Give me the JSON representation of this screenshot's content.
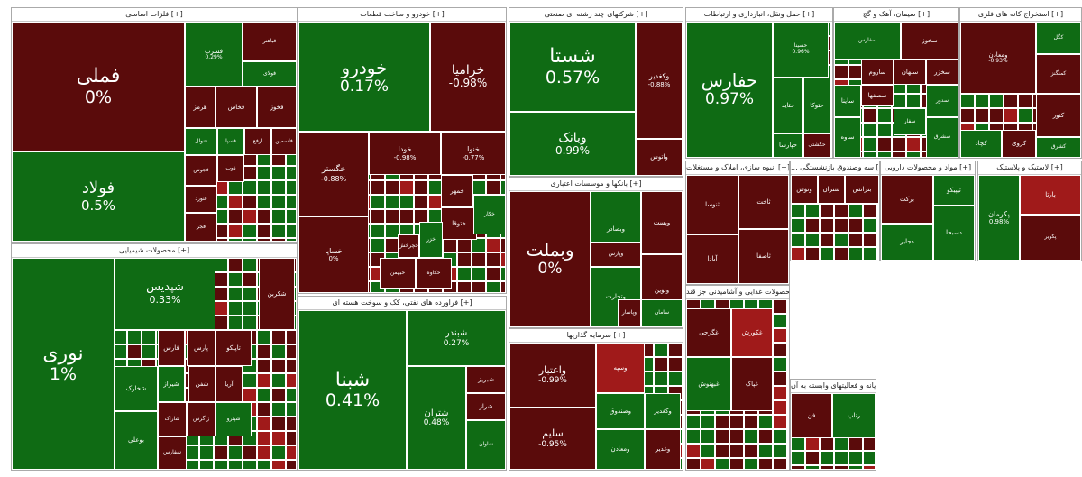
{
  "colors": {
    "green": "#0f6b14",
    "red": "#5a0b0b",
    "red_bright": "#a01a1a",
    "red_mid": "#7d1010",
    "border": "#ffffff",
    "header_bg": "#ffffff"
  },
  "sectors": [
    {
      "id": "s1",
      "title": "فلزات اساسی [+]",
      "tiles": [
        {
          "name": "فملی",
          "pct": "0%",
          "c": "red"
        },
        {
          "name": "فولاد",
          "pct": "0.5%",
          "c": "green"
        },
        {
          "name": "فسرب",
          "pct": "0.29%",
          "c": "green"
        },
        {
          "name": "فباهنر",
          "pct": "",
          "c": "red"
        },
        {
          "name": "فولای",
          "pct": "",
          "c": "green"
        },
        {
          "name": "هرمز",
          "pct": "",
          "c": "red"
        },
        {
          "name": "فخاس",
          "pct": "",
          "c": "red"
        },
        {
          "name": "فخوز",
          "pct": "",
          "c": "red"
        },
        {
          "name": "فنوال",
          "pct": "",
          "c": "green"
        },
        {
          "name": "فسپا",
          "pct": "",
          "c": "green"
        },
        {
          "name": "ارفع",
          "pct": "",
          "c": "red"
        },
        {
          "name": "فاسمین",
          "pct": "",
          "c": "red"
        },
        {
          "name": "فجوش",
          "pct": "",
          "c": "red"
        },
        {
          "name": "ذوب",
          "pct": "",
          "c": "red"
        },
        {
          "name": "فنورد",
          "pct": "",
          "c": "red"
        },
        {
          "name": "فجر",
          "pct": "",
          "c": "red"
        }
      ]
    },
    {
      "id": "s2",
      "title": "خودرو و ساخت قطعات [+]",
      "tiles": [
        {
          "name": "خودرو",
          "pct": "0.17%",
          "c": "green"
        },
        {
          "name": "خرامیا",
          "pct": "-0.98%",
          "c": "red"
        },
        {
          "name": "خگستر",
          "pct": "-0.88%",
          "c": "red"
        },
        {
          "name": "خودا",
          "pct": "-0.98%",
          "c": "red"
        },
        {
          "name": "خنوا",
          "pct": "-0.77%",
          "c": "red"
        },
        {
          "name": "خساپا",
          "pct": "0%",
          "c": "red"
        },
        {
          "name": "خمهر",
          "pct": "",
          "c": "red"
        },
        {
          "name": "ختوقا",
          "pct": "",
          "c": "red"
        },
        {
          "name": "خکار",
          "pct": "",
          "c": "green"
        },
        {
          "name": "خزر",
          "pct": "",
          "c": "green"
        },
        {
          "name": "خچرخش",
          "pct": "",
          "c": "red"
        },
        {
          "name": "خبهمن",
          "pct": "",
          "c": "red"
        },
        {
          "name": "خکاوه",
          "pct": "",
          "c": "red"
        }
      ]
    },
    {
      "id": "s3",
      "title": "شرکتهای چند رشته ای صنعتی [+]",
      "tiles": [
        {
          "name": "شستا",
          "pct": "0.57%",
          "c": "green"
        },
        {
          "name": "وکغدیر",
          "pct": "-0.88%",
          "c": "red"
        },
        {
          "name": "وبانک",
          "pct": "0.99%",
          "c": "green"
        },
        {
          "name": "واتوس",
          "pct": "",
          "c": "red"
        }
      ]
    },
    {
      "id": "s4",
      "title": "حمل ونقل، انبارداری و ارتباطات [+]",
      "tiles": [
        {
          "name": "حفارس",
          "pct": "0.97%",
          "c": "green"
        },
        {
          "name": "حسینا",
          "pct": "0.96%",
          "c": "green"
        },
        {
          "name": "حتاید",
          "pct": "",
          "c": "green"
        },
        {
          "name": "حتوکا",
          "pct": "",
          "c": "green"
        },
        {
          "name": "حپارسا",
          "pct": "",
          "c": "green"
        },
        {
          "name": "حکشتی",
          "pct": "",
          "c": "red"
        }
      ]
    },
    {
      "id": "s5",
      "title": "سیمان، آهک و گچ [+]",
      "tiles": [
        {
          "name": "سفارس",
          "pct": "",
          "c": "green"
        },
        {
          "name": "سخوز",
          "pct": "",
          "c": "red"
        },
        {
          "name": "ساروم",
          "pct": "",
          "c": "red"
        },
        {
          "name": "سبهان",
          "pct": "",
          "c": "red"
        },
        {
          "name": "ساینا",
          "pct": "",
          "c": "green"
        },
        {
          "name": "سصفها",
          "pct": "",
          "c": "red"
        },
        {
          "name": "سخزر",
          "pct": "",
          "c": "red"
        },
        {
          "name": "سفار",
          "pct": "",
          "c": "green"
        },
        {
          "name": "سدور",
          "pct": "",
          "c": "green"
        },
        {
          "name": "ساوه",
          "pct": "",
          "c": "green"
        },
        {
          "name": "سشرق",
          "pct": "",
          "c": "green"
        }
      ]
    },
    {
      "id": "s6",
      "title": "استخراج کانه های فلزی [+]",
      "tiles": [
        {
          "name": "ومعادن",
          "pct": "-0.93%",
          "c": "red"
        },
        {
          "name": "کگل",
          "pct": "",
          "c": "green"
        },
        {
          "name": "کچاد",
          "pct": "",
          "c": "green"
        },
        {
          "name": "کنور",
          "pct": "",
          "c": "red"
        },
        {
          "name": "کروی",
          "pct": "",
          "c": "red"
        },
        {
          "name": "کشرق",
          "pct": "",
          "c": "green"
        },
        {
          "name": "کمنگنز",
          "pct": "",
          "c": "red"
        }
      ]
    },
    {
      "id": "s7",
      "title": "محصولات شیمیایی [+]",
      "tiles": [
        {
          "name": "نوری",
          "pct": "1%",
          "c": "green"
        },
        {
          "name": "شپدیس",
          "pct": "0.33%",
          "c": "green"
        },
        {
          "name": "فارس",
          "pct": "",
          "c": "red"
        },
        {
          "name": "پارس",
          "pct": "",
          "c": "red"
        },
        {
          "name": "شیراز",
          "pct": "",
          "c": "green"
        },
        {
          "name": "تاپیکو",
          "pct": "",
          "c": "red"
        },
        {
          "name": "شکربن",
          "pct": "",
          "c": "red"
        },
        {
          "name": "شفن",
          "pct": "",
          "c": "red"
        },
        {
          "name": "آریا",
          "pct": "",
          "c": "red"
        },
        {
          "name": "شخارک",
          "pct": "",
          "c": "green"
        },
        {
          "name": "بوعلی",
          "pct": "",
          "c": "green"
        },
        {
          "name": "شاراک",
          "pct": "",
          "c": "red"
        },
        {
          "name": "زاگرس",
          "pct": "",
          "c": "red"
        },
        {
          "name": "شپترو",
          "pct": "",
          "c": "green"
        },
        {
          "name": "شفارس",
          "pct": "",
          "c": "red"
        }
      ]
    },
    {
      "id": "s8",
      "title": "فراورده های نفتی، کک و سوخت هسته ای [+]",
      "tiles": [
        {
          "name": "شبنا",
          "pct": "0.41%",
          "c": "green"
        },
        {
          "name": "شبندر",
          "pct": "0.27%",
          "c": "green"
        },
        {
          "name": "شتران",
          "pct": "0.48%",
          "c": "green"
        },
        {
          "name": "شبریز",
          "pct": "",
          "c": "red"
        },
        {
          "name": "شراز",
          "pct": "",
          "c": "red"
        },
        {
          "name": "شاوان",
          "pct": "",
          "c": "green"
        }
      ]
    },
    {
      "id": "s9",
      "title": "بانکها و موسسات اعتباری [+]",
      "tiles": [
        {
          "name": "وبملت",
          "pct": "0%",
          "c": "red"
        },
        {
          "name": "وبصادر",
          "pct": "",
          "c": "green"
        },
        {
          "name": "وتجارت",
          "pct": "",
          "c": "green"
        },
        {
          "name": "وپست",
          "pct": "",
          "c": "red"
        },
        {
          "name": "ونوین",
          "pct": "",
          "c": "red"
        },
        {
          "name": "وپاسار",
          "pct": "",
          "c": "red"
        },
        {
          "name": "سامان",
          "pct": "",
          "c": "green"
        },
        {
          "name": "وپارس",
          "pct": "",
          "c": "red"
        }
      ]
    },
    {
      "id": "s10",
      "title": "سرمایه گذاریها [+]",
      "tiles": [
        {
          "name": "واعتبار",
          "pct": "-0.99%",
          "c": "red"
        },
        {
          "name": "سلیم",
          "pct": "-0.95%",
          "c": "red"
        },
        {
          "name": "وسپه",
          "pct": "",
          "c": "red_bright"
        },
        {
          "name": "وصندوق",
          "pct": "",
          "c": "green"
        },
        {
          "name": "وکغدیر",
          "pct": "",
          "c": "green"
        },
        {
          "name": "وغدیر",
          "pct": "",
          "c": "red"
        },
        {
          "name": "ومعادن",
          "pct": "",
          "c": "green"
        }
      ]
    },
    {
      "id": "s11",
      "title": "انبوه سازی، املاک و مستغلات [+]",
      "tiles": [
        {
          "name": "ثنوسا",
          "pct": "",
          "c": "red"
        },
        {
          "name": "ثاخت",
          "pct": "",
          "c": "red"
        },
        {
          "name": "ثاصفا",
          "pct": "",
          "c": "red"
        },
        {
          "name": "آبادا",
          "pct": "",
          "c": "red"
        }
      ]
    },
    {
      "id": "s12",
      "title": "... سه وصندوق بازنشستگی [+]",
      "tiles": [
        {
          "name": "وتوس",
          "pct": "",
          "c": "red"
        },
        {
          "name": "شتران",
          "pct": "",
          "c": "red"
        },
        {
          "name": "بترانس",
          "pct": "",
          "c": "red"
        }
      ]
    },
    {
      "id": "s13",
      "title": "مواد و محصولات دارویی [+]",
      "tiles": [
        {
          "name": "برکت",
          "pct": "",
          "c": "red"
        },
        {
          "name": "تیپیکو",
          "pct": "",
          "c": "green"
        },
        {
          "name": "دجابر",
          "pct": "",
          "c": "green"
        },
        {
          "name": "دسبحا",
          "pct": "",
          "c": "green"
        }
      ]
    },
    {
      "id": "s14",
      "title": "لاستیک و پلاستیک [+]",
      "tiles": [
        {
          "name": "پکرمان",
          "pct": "0.98%",
          "c": "green"
        },
        {
          "name": "پکویر",
          "pct": "",
          "c": "red"
        },
        {
          "name": "پارتا",
          "pct": "",
          "c": "red_bright"
        }
      ]
    },
    {
      "id": "s15",
      "title": "محصولات غذایی و آشامیدنی جز قند [+]",
      "tiles": [
        {
          "name": "غگرجی",
          "pct": "",
          "c": "red"
        },
        {
          "name": "غکورش",
          "pct": "",
          "c": "red_bright"
        },
        {
          "name": "غبهنوش",
          "pct": "",
          "c": "green"
        },
        {
          "name": "غپاک",
          "pct": "",
          "c": "red"
        }
      ]
    },
    {
      "id": "s16",
      "title": "رایانه و فعالیتهای وابسته به آن [+]",
      "tiles": [
        {
          "name": "فن",
          "pct": "",
          "c": "red"
        },
        {
          "name": "رتاپ",
          "pct": "",
          "c": "green"
        }
      ]
    }
  ]
}
